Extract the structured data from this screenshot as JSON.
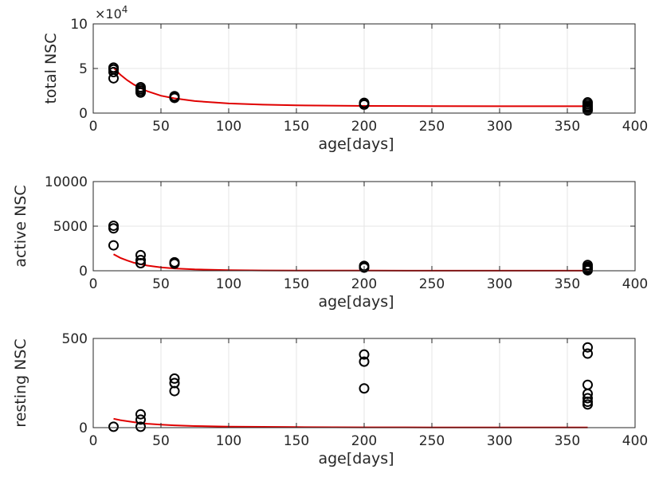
{
  "chart_data": [
    {
      "type": "scatter",
      "xlabel": "age[days]",
      "ylabel": "total NSC",
      "exponent_label": "×10",
      "exponent_value": "4",
      "xlim": [
        0,
        400
      ],
      "ylim": [
        0,
        10
      ],
      "xticks": [
        "0",
        "50",
        "100",
        "150",
        "200",
        "250",
        "300",
        "350",
        "400"
      ],
      "yticks": [
        "0",
        "5",
        "10"
      ],
      "grid": true,
      "marker_color": "#000000",
      "line_color": "#e00000",
      "points": {
        "x": [
          15,
          15,
          15,
          15,
          35,
          35,
          35,
          35,
          60,
          60,
          60,
          200,
          200,
          200,
          365,
          365,
          365,
          365,
          365,
          365,
          365
        ],
        "y": [
          5.1,
          4.9,
          4.6,
          3.9,
          2.9,
          2.7,
          2.5,
          2.3,
          1.9,
          1.75,
          1.7,
          1.15,
          1.05,
          0.95,
          1.2,
          1.0,
          0.8,
          0.65,
          0.5,
          0.4,
          0.3
        ]
      },
      "fit": {
        "x": [
          15,
          20,
          25,
          30,
          35,
          40,
          50,
          60,
          75,
          100,
          125,
          150,
          200,
          250,
          300,
          365
        ],
        "y": [
          5.1,
          4.3,
          3.7,
          3.2,
          2.8,
          2.45,
          1.95,
          1.65,
          1.35,
          1.08,
          0.95,
          0.87,
          0.8,
          0.78,
          0.77,
          0.77
        ]
      }
    },
    {
      "type": "scatter",
      "xlabel": "age[days]",
      "ylabel": "active NSC",
      "xlim": [
        0,
        400
      ],
      "ylim": [
        0,
        10000
      ],
      "xticks": [
        "0",
        "50",
        "100",
        "150",
        "200",
        "250",
        "300",
        "350",
        "400"
      ],
      "yticks": [
        "0",
        "5000",
        "10000"
      ],
      "grid": true,
      "marker_color": "#000000",
      "line_color": "#e00000",
      "points": {
        "x": [
          15,
          15,
          15,
          35,
          35,
          35,
          60,
          60,
          200,
          200,
          200,
          365,
          365,
          365,
          365,
          365
        ],
        "y": [
          5050,
          4750,
          2850,
          1750,
          1200,
          850,
          950,
          800,
          550,
          400,
          350,
          650,
          450,
          300,
          150,
          50
        ]
      },
      "fit": {
        "x": [
          15,
          20,
          25,
          30,
          35,
          40,
          50,
          60,
          75,
          100,
          125,
          150,
          200,
          250,
          300,
          365
        ],
        "y": [
          1850,
          1450,
          1150,
          900,
          720,
          580,
          380,
          260,
          150,
          70,
          40,
          25,
          15,
          10,
          8,
          8
        ]
      }
    },
    {
      "type": "scatter",
      "xlabel": "age[days]",
      "ylabel": "resting NSC",
      "xlim": [
        0,
        400
      ],
      "ylim": [
        0,
        500
      ],
      "xticks": [
        "0",
        "50",
        "100",
        "150",
        "200",
        "250",
        "300",
        "350",
        "400"
      ],
      "yticks": [
        "0",
        "500"
      ],
      "grid": true,
      "marker_color": "#000000",
      "line_color": "#e00000",
      "points": {
        "x": [
          15,
          35,
          35,
          35,
          60,
          60,
          60,
          200,
          200,
          200,
          365,
          365,
          365,
          365,
          365,
          365,
          365
        ],
        "y": [
          5,
          75,
          45,
          5,
          275,
          250,
          205,
          410,
          370,
          220,
          450,
          415,
          240,
          190,
          165,
          145,
          130
        ]
      },
      "fit": {
        "x": [
          15,
          20,
          25,
          30,
          35,
          40,
          50,
          60,
          75,
          100,
          150,
          200,
          250,
          300,
          365
        ],
        "y": [
          50,
          42,
          36,
          31,
          26,
          22,
          17,
          13,
          9,
          6,
          3,
          2,
          1.5,
          1,
          1
        ]
      }
    }
  ]
}
